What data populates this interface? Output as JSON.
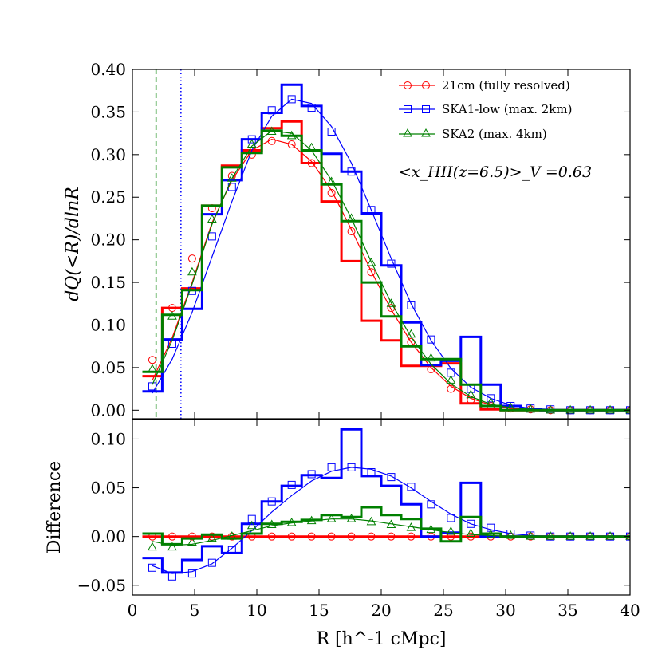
{
  "figure": {
    "annotation_text": "<x_HII(z=6.5)>_V =0.63",
    "vlines": [
      {
        "x": 1.9,
        "color": "#008000",
        "style": "dashed"
      },
      {
        "x": 3.9,
        "color": "#0000ff",
        "style": "dotted"
      }
    ]
  },
  "chart_data": [
    {
      "type": "line",
      "panel": "top",
      "ylabel": "dQ(<R)/dlnR",
      "xlabel": "R [h^-1 cMpc]",
      "xlim": [
        0,
        40
      ],
      "ylim": [
        -0.01,
        0.4
      ],
      "xticks": [
        "0",
        "5",
        "10",
        "15",
        "20",
        "25",
        "30",
        "35",
        "40"
      ],
      "yticks": [
        "0.00",
        "0.05",
        "0.10",
        "0.15",
        "0.20",
        "0.25",
        "0.30",
        "0.35",
        "0.40"
      ],
      "legend_position": "top-right",
      "x": [
        1.6,
        3.2,
        4.8,
        6.4,
        8.0,
        9.6,
        11.2,
        12.8,
        14.4,
        16.0,
        17.6,
        19.2,
        20.8,
        22.4,
        24.0,
        25.6,
        27.2,
        28.8,
        30.4,
        32.0,
        33.6,
        35.2,
        36.8,
        38.4,
        40.0
      ],
      "series": [
        {
          "name": "21cm (fully resolved)",
          "color": "#ff0000",
          "marker": "circle",
          "values": [
            0.059,
            0.12,
            0.178,
            0.237,
            0.275,
            0.3,
            0.316,
            0.312,
            0.29,
            0.255,
            0.21,
            0.162,
            0.12,
            0.08,
            0.048,
            0.025,
            0.012,
            0.005,
            0.002,
            0.001,
            0,
            0,
            0,
            0,
            0
          ],
          "hist": [
            0.04,
            0.12,
            0.143,
            0.24,
            0.287,
            0.305,
            0.331,
            0.339,
            0.29,
            0.245,
            0.175,
            0.105,
            0.082,
            0.052,
            0.052,
            0.055,
            0.008,
            0.001,
            0,
            0,
            0,
            0,
            0,
            0,
            0
          ],
          "fit": [
            0.035,
            0.085,
            0.15,
            0.22,
            0.27,
            0.305,
            0.318,
            0.312,
            0.292,
            0.258,
            0.212,
            0.163,
            0.118,
            0.08,
            0.05,
            0.028,
            0.014,
            0.006,
            0.002,
            0.001,
            0,
            0,
            0,
            0,
            0
          ]
        },
        {
          "name": "SKA1-low (max. 2km)",
          "color": "#0000ff",
          "marker": "square",
          "values": [
            0.028,
            0.078,
            0.14,
            0.204,
            0.262,
            0.318,
            0.352,
            0.365,
            0.355,
            0.327,
            0.28,
            0.235,
            0.172,
            0.123,
            0.083,
            0.044,
            0.025,
            0.014,
            0.005,
            0.002,
            0.001,
            0,
            0,
            0,
            0
          ],
          "hist": [
            0.022,
            0.083,
            0.119,
            0.23,
            0.27,
            0.318,
            0.349,
            0.382,
            0.357,
            0.301,
            0.28,
            0.231,
            0.17,
            0.103,
            0.053,
            0.058,
            0.086,
            0.03,
            0.005,
            0.001,
            0,
            0,
            0,
            0,
            0
          ],
          "fit": [
            0.02,
            0.06,
            0.115,
            0.18,
            0.245,
            0.305,
            0.345,
            0.365,
            0.36,
            0.333,
            0.29,
            0.235,
            0.178,
            0.125,
            0.082,
            0.049,
            0.027,
            0.014,
            0.006,
            0.002,
            0.001,
            0,
            0,
            0,
            0
          ]
        },
        {
          "name": "SKA2 (max. 4km)",
          "color": "#008000",
          "marker": "triangle",
          "values": [
            0.048,
            0.11,
            0.162,
            0.224,
            0.272,
            0.312,
            0.327,
            0.322,
            0.308,
            0.268,
            0.225,
            0.173,
            0.125,
            0.089,
            0.061,
            0.035,
            0.018,
            0.009,
            0.003,
            0.001,
            0,
            0,
            0,
            0,
            0
          ],
          "hist": [
            0.045,
            0.112,
            0.141,
            0.24,
            0.285,
            0.302,
            0.328,
            0.322,
            0.305,
            0.265,
            0.222,
            0.15,
            0.11,
            0.075,
            0.06,
            0.06,
            0.03,
            0.005,
            0,
            0,
            0,
            0,
            0,
            0,
            0
          ],
          "fit": [
            0.03,
            0.082,
            0.148,
            0.218,
            0.272,
            0.31,
            0.328,
            0.325,
            0.305,
            0.27,
            0.225,
            0.174,
            0.126,
            0.086,
            0.054,
            0.031,
            0.016,
            0.007,
            0.003,
            0.001,
            0,
            0,
            0,
            0,
            0
          ]
        }
      ]
    },
    {
      "type": "line",
      "panel": "bottom",
      "ylabel": "Difference",
      "xlabel": "R [h^-1 cMpc]",
      "xlim": [
        0,
        40
      ],
      "ylim": [
        -0.06,
        0.12
      ],
      "xticks": [
        "0",
        "5",
        "10",
        "15",
        "20",
        "25",
        "30",
        "35",
        "40"
      ],
      "yticks": [
        "−0.05",
        "0.00",
        "0.05",
        "0.10"
      ],
      "x": [
        1.6,
        3.2,
        4.8,
        6.4,
        8.0,
        9.6,
        11.2,
        12.8,
        14.4,
        16.0,
        17.6,
        19.2,
        20.8,
        22.4,
        24.0,
        25.6,
        27.2,
        28.8,
        30.4,
        32.0,
        33.6,
        35.2,
        36.8,
        38.4,
        40.0
      ],
      "series": [
        {
          "name": "21cm (fully resolved)",
          "color": "#ff0000",
          "marker": "circle",
          "values": [
            0,
            0,
            0,
            0,
            0,
            0,
            0,
            0,
            0,
            0,
            0,
            0,
            0,
            0,
            0,
            0,
            0,
            0,
            0,
            0,
            0,
            0,
            0,
            0,
            0
          ],
          "hist": [
            0,
            0,
            0,
            0,
            0,
            0,
            0,
            0,
            0,
            0,
            0,
            0,
            0,
            0,
            0,
            0,
            0,
            0,
            0,
            0,
            0,
            0,
            0,
            0,
            0
          ],
          "fit": [
            0,
            0,
            0,
            0,
            0,
            0,
            0,
            0,
            0,
            0,
            0,
            0,
            0,
            0,
            0,
            0,
            0,
            0,
            0,
            0,
            0,
            0,
            0,
            0,
            0
          ]
        },
        {
          "name": "SKA1-low (max. 2km)",
          "color": "#0000ff",
          "marker": "square",
          "values": [
            -0.032,
            -0.041,
            -0.038,
            -0.027,
            -0.014,
            0.018,
            0.036,
            0.053,
            0.064,
            0.071,
            0.071,
            0.066,
            0.061,
            0.051,
            0.033,
            0.019,
            0.013,
            0.009,
            0.003,
            0.001,
            0,
            0,
            0,
            0,
            0
          ],
          "hist": [
            -0.022,
            -0.037,
            -0.024,
            -0.01,
            -0.017,
            0.013,
            0.036,
            0.052,
            0.063,
            0.06,
            0.11,
            0.062,
            0.052,
            0.033,
            0.0,
            0.004,
            0.055,
            0.0,
            0,
            0,
            0,
            0,
            0,
            0,
            0
          ],
          "fit": [
            -0.03,
            -0.038,
            -0.036,
            -0.028,
            -0.012,
            0.006,
            0.025,
            0.042,
            0.057,
            0.067,
            0.071,
            0.069,
            0.062,
            0.05,
            0.036,
            0.023,
            0.013,
            0.007,
            0.003,
            0.001,
            0,
            0,
            0,
            0,
            0
          ]
        },
        {
          "name": "SKA2 (max. 4km)",
          "color": "#008000",
          "marker": "triangle",
          "values": [
            -0.011,
            -0.011,
            -0.006,
            -0.002,
            0.0,
            0.011,
            0.012,
            0.014,
            0.016,
            0.018,
            0.018,
            0.015,
            0.012,
            0.009,
            0.007,
            0.005,
            0.003,
            0.002,
            0.001,
            0,
            0,
            0,
            0,
            0,
            0
          ],
          "hist": [
            0.003,
            -0.008,
            -0.002,
            0.002,
            -0.002,
            0.003,
            0.013,
            0.015,
            0.017,
            0.022,
            0.02,
            0.03,
            0.022,
            0.018,
            0.008,
            -0.005,
            0.02,
            0.003,
            0,
            0,
            0,
            0,
            0,
            0,
            0
          ],
          "fit": [
            -0.005,
            -0.009,
            -0.008,
            -0.004,
            0.001,
            0.006,
            0.011,
            0.014,
            0.016,
            0.018,
            0.018,
            0.016,
            0.013,
            0.01,
            0.007,
            0.004,
            0.002,
            0.001,
            0,
            0,
            0,
            0,
            0,
            0,
            0
          ]
        }
      ]
    }
  ]
}
